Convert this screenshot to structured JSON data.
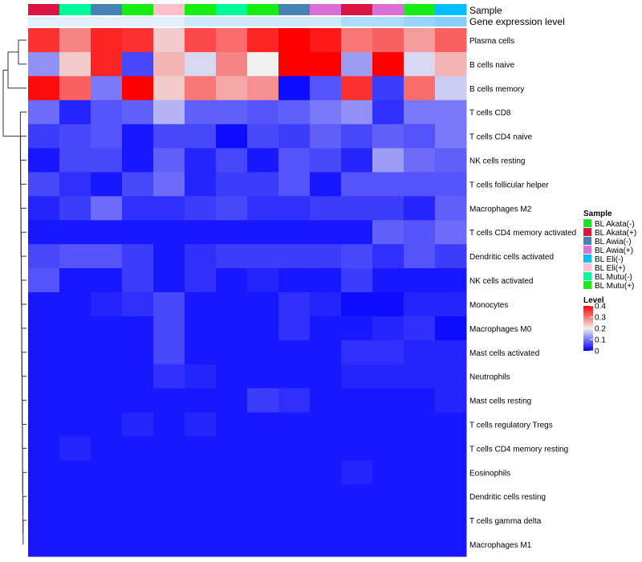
{
  "chart_data": {
    "type": "heatmap",
    "annotation_titles": [
      "Sample",
      "Gene expression level"
    ],
    "sample_groups": [
      "BL Akata(+)",
      "BL Mutu(-)",
      "BL Awia(-)",
      "BL Mutu(+)",
      "BL Eli(+)",
      "BL Mutu(+)",
      "BL Mutu(-)",
      "BL Mutu(+)",
      "BL Awia(-)",
      "BL Awia(+)",
      "BL Akata(+)",
      "BL Awia(+)",
      "BL Mutu(+)",
      "BL Eli(-)"
    ],
    "expression_band_shades": [
      0.88,
      0.88,
      0.88,
      0.88,
      0.88,
      0.82,
      0.82,
      0.82,
      0.82,
      0.82,
      0.72,
      0.72,
      0.65,
      0.6
    ],
    "rows": [
      "Plasma cells",
      "B cells naive",
      "B cells memory",
      "T cells CD8",
      "T cells CD4 naive",
      "NK cells resting",
      "T cells follicular helper",
      "Macrophages M2",
      "T cells CD4 memory activated",
      "Dendritic cells activated",
      "NK cells activated",
      "Monocytes",
      "Macrophages M0",
      "Mast cells activated",
      "Neutrophils",
      "Mast cells resting",
      "T cells regulatory  Tregs",
      "T cells CD4 memory resting",
      "Eosinophils",
      "Dendritic cells resting",
      "T cells gamma delta",
      "Macrophages M1"
    ],
    "values": [
      [
        0.36,
        0.29,
        0.37,
        0.36,
        0.23,
        0.34,
        0.31,
        0.37,
        0.4,
        0.38,
        0.3,
        0.32,
        0.27,
        0.32
      ],
      [
        0.12,
        0.23,
        0.37,
        0.06,
        0.25,
        0.18,
        0.29,
        0.2,
        0.42,
        0.42,
        0.13,
        0.41,
        0.18,
        0.25
      ],
      [
        0.39,
        0.32,
        0.1,
        0.41,
        0.23,
        0.3,
        0.26,
        0.28,
        0.01,
        0.07,
        0.36,
        0.05,
        0.31,
        0.17
      ],
      [
        0.09,
        0.03,
        0.07,
        0.08,
        0.15,
        0.08,
        0.08,
        0.07,
        0.08,
        0.1,
        0.12,
        0.04,
        0.1,
        0.1
      ],
      [
        0.05,
        0.06,
        0.07,
        0.02,
        0.06,
        0.06,
        0.01,
        0.06,
        0.05,
        0.08,
        0.06,
        0.08,
        0.07,
        0.1
      ],
      [
        0.02,
        0.06,
        0.06,
        0.02,
        0.08,
        0.03,
        0.06,
        0.02,
        0.07,
        0.06,
        0.03,
        0.13,
        0.09,
        0.08
      ],
      [
        0.06,
        0.04,
        0.02,
        0.06,
        0.09,
        0.03,
        0.05,
        0.05,
        0.07,
        0.02,
        0.07,
        0.07,
        0.07,
        0.07
      ],
      [
        0.03,
        0.05,
        0.09,
        0.04,
        0.04,
        0.05,
        0.06,
        0.04,
        0.04,
        0.05,
        0.05,
        0.05,
        0.03,
        0.08
      ],
      [
        0.02,
        0.02,
        0.02,
        0.02,
        0.02,
        0.02,
        0.02,
        0.02,
        0.02,
        0.02,
        0.02,
        0.08,
        0.07,
        0.09
      ],
      [
        0.06,
        0.07,
        0.07,
        0.05,
        0.02,
        0.04,
        0.05,
        0.05,
        0.05,
        0.05,
        0.06,
        0.04,
        0.07,
        0.05
      ],
      [
        0.07,
        0.02,
        0.02,
        0.05,
        0.02,
        0.04,
        0.02,
        0.03,
        0.02,
        0.02,
        0.05,
        0.02,
        0.02,
        0.02
      ],
      [
        0.02,
        0.02,
        0.03,
        0.04,
        0.06,
        0.02,
        0.02,
        0.02,
        0.04,
        0.03,
        0.01,
        0.01,
        0.03,
        0.03
      ],
      [
        0.02,
        0.02,
        0.02,
        0.02,
        0.06,
        0.02,
        0.02,
        0.02,
        0.04,
        0.02,
        0.02,
        0.03,
        0.04,
        0.01
      ],
      [
        0.02,
        0.02,
        0.02,
        0.02,
        0.06,
        0.02,
        0.02,
        0.02,
        0.02,
        0.02,
        0.04,
        0.04,
        0.03,
        0.03
      ],
      [
        0.02,
        0.02,
        0.02,
        0.02,
        0.04,
        0.03,
        0.02,
        0.02,
        0.02,
        0.02,
        0.03,
        0.03,
        0.03,
        0.03
      ],
      [
        0.02,
        0.02,
        0.02,
        0.02,
        0.02,
        0.02,
        0.02,
        0.05,
        0.04,
        0.02,
        0.02,
        0.02,
        0.02,
        0.03
      ],
      [
        0.02,
        0.02,
        0.02,
        0.03,
        0.02,
        0.03,
        0.02,
        0.02,
        0.02,
        0.02,
        0.02,
        0.02,
        0.02,
        0.02
      ],
      [
        0.02,
        0.03,
        0.02,
        0.02,
        0.02,
        0.02,
        0.02,
        0.02,
        0.02,
        0.02,
        0.02,
        0.02,
        0.02,
        0.02
      ],
      [
        0.02,
        0.02,
        0.02,
        0.02,
        0.02,
        0.02,
        0.02,
        0.02,
        0.02,
        0.02,
        0.03,
        0.02,
        0.02,
        0.02
      ],
      [
        0.02,
        0.02,
        0.02,
        0.02,
        0.02,
        0.02,
        0.02,
        0.02,
        0.02,
        0.02,
        0.02,
        0.02,
        0.02,
        0.02
      ],
      [
        0.02,
        0.02,
        0.02,
        0.02,
        0.02,
        0.02,
        0.02,
        0.02,
        0.02,
        0.02,
        0.02,
        0.02,
        0.02,
        0.02
      ],
      [
        0.02,
        0.02,
        0.02,
        0.02,
        0.02,
        0.02,
        0.02,
        0.02,
        0.02,
        0.02,
        0.02,
        0.02,
        0.02,
        0.02
      ]
    ],
    "color_scale": {
      "range": [
        0,
        0.4
      ],
      "stops": [
        {
          "value": 0.0,
          "color": "#0000ff"
        },
        {
          "value": 0.2,
          "color": "#f0f0f0"
        },
        {
          "value": 0.4,
          "color": "#ff0000"
        }
      ]
    },
    "legend": {
      "sample_title": "Sample",
      "samples": [
        {
          "label": "BL Akata(-)",
          "color": "#12e61e"
        },
        {
          "label": "BL Akata(+)",
          "color": "#dc1441"
        },
        {
          "label": "BL Awia(-)",
          "color": "#4682b4"
        },
        {
          "label": "BL Awia(+)",
          "color": "#da70d6"
        },
        {
          "label": "BL Eli(-)",
          "color": "#00bfff"
        },
        {
          "label": "BL Eli(+)",
          "color": "#ffc0cb"
        },
        {
          "label": "BL Mutu(-)",
          "color": "#00fa9a"
        },
        {
          "label": "BL Mutu(+)",
          "color": "#16ed13"
        }
      ],
      "level_title": "Level",
      "level_ticks": [
        "0.4",
        "0.3",
        "0.2",
        "0.1",
        "0"
      ],
      "level_tick_values": [
        0.4,
        0.3,
        0.2,
        0.1,
        0
      ]
    },
    "dendrogram": "row clustering tree (left)",
    "xlabel": "",
    "ylabel": ""
  }
}
